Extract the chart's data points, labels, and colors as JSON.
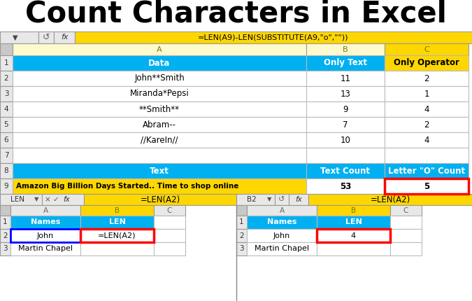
{
  "title": "Count Characters in Excel",
  "bg_color": "#ffffff",
  "formula_bar_top": "=LEN(A9)-LEN(SUBSTITUTE(A9,\"o\",\"\"))",
  "formula_bar_bottom_left": "=LEN(A2)",
  "formula_bar_bottom_right": "=LEN(A2)",
  "colors": {
    "cyan": "#00B0F0",
    "yellow": "#FFD700",
    "light_yellow": "#FFFACD",
    "red": "#FF0000",
    "blue": "#0000FF",
    "white": "#FFFFFF",
    "light_gray": "#E8E8E8",
    "med_gray": "#C8C8C8",
    "dark_gray": "#999999"
  },
  "top_rows_a": [
    "Data",
    "John**Smith",
    "Miranda*Pepsi",
    "**Smith**",
    "Abram--",
    "//KareIn//",
    "",
    "Text",
    "Amazon Big Billion Days Started.. Time to shop online"
  ],
  "top_rows_b": [
    "Only Text",
    "11",
    "13",
    "9",
    "7",
    "10",
    "",
    "Text Count",
    "53"
  ],
  "top_rows_c": [
    "Only Operator",
    "2",
    "1",
    "4",
    "2",
    "4",
    "",
    "Letter \"O\" Count",
    "5"
  ],
  "row_labels": [
    "1",
    "2",
    "3",
    "4",
    "5",
    "6",
    "7",
    "8",
    "9"
  ]
}
